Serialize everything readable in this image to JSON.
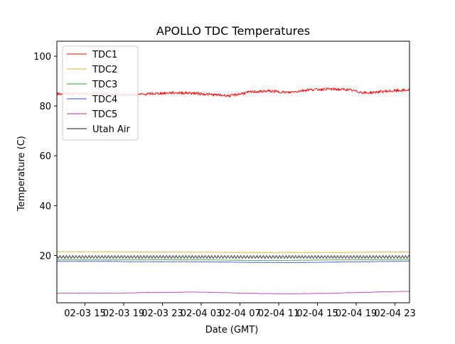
{
  "chart_data": {
    "type": "line",
    "title": "APOLLO TDC Temperatures",
    "xlabel": "Date (GMT)",
    "ylabel": "Temperature (C)",
    "x_unit": "hours since 2024-02-03 00:00 GMT",
    "xlim": [
      12.1,
      48.5
    ],
    "ylim": [
      1,
      106
    ],
    "grid": false,
    "legend": {
      "position": "top-left",
      "entries": [
        "TDC1",
        "TDC2",
        "TDC3",
        "TDC4",
        "TDC5",
        "Utah Air"
      ]
    },
    "xticks": [
      {
        "value": 15,
        "label": "02-03 15"
      },
      {
        "value": 19,
        "label": "02-03 19"
      },
      {
        "value": 23,
        "label": "02-03 23"
      },
      {
        "value": 27,
        "label": "02-04 03"
      },
      {
        "value": 31,
        "label": "02-04 07"
      },
      {
        "value": 35,
        "label": "02-04 11"
      },
      {
        "value": 39,
        "label": "02-04 15"
      },
      {
        "value": 43,
        "label": "02-04 19"
      },
      {
        "value": 47,
        "label": "02-04 23"
      }
    ],
    "yticks": [
      {
        "value": 20,
        "label": "20"
      },
      {
        "value": 40,
        "label": "40"
      },
      {
        "value": 60,
        "label": "60"
      },
      {
        "value": 80,
        "label": "80"
      },
      {
        "value": 100,
        "label": "100"
      }
    ],
    "x": [
      12.1,
      14,
      16,
      18,
      20,
      22,
      24,
      26,
      28,
      30,
      32,
      34,
      36,
      38,
      40,
      42,
      44,
      46,
      48.5
    ],
    "series": [
      {
        "name": "TDC1",
        "color": "#ff0000",
        "noise": 0.5,
        "values": [
          84.9,
          85.0,
          84.8,
          84.6,
          84.5,
          84.9,
          85.3,
          85.2,
          84.6,
          84.1,
          85.6,
          86.0,
          85.4,
          86.5,
          86.8,
          86.6,
          85.2,
          85.9,
          86.4
        ]
      },
      {
        "name": "TDC2",
        "color": "#d6b02a",
        "noise": 0.05,
        "values": [
          21.5,
          21.5,
          21.5,
          21.5,
          21.4,
          21.4,
          21.4,
          21.3,
          21.3,
          21.2,
          21.2,
          21.2,
          21.2,
          21.2,
          21.2,
          21.2,
          21.3,
          21.4,
          21.4
        ]
      },
      {
        "name": "TDC3",
        "color": "#2ca02c",
        "noise": 0.05,
        "values": [
          18.2,
          18.2,
          18.2,
          18.2,
          18.3,
          18.3,
          18.3,
          18.3,
          18.2,
          18.1,
          18.0,
          18.0,
          18.0,
          18.1,
          18.2,
          18.2,
          18.3,
          18.3,
          18.4
        ]
      },
      {
        "name": "TDC4",
        "color": "#3344cc",
        "noise": 0.05,
        "values": [
          17.6,
          17.6,
          17.6,
          17.6,
          17.5,
          17.5,
          17.5,
          17.5,
          17.4,
          17.3,
          17.2,
          17.2,
          17.1,
          17.2,
          17.3,
          17.4,
          17.5,
          17.6,
          17.7
        ]
      },
      {
        "name": "TDC5",
        "color": "#b030b0",
        "noise": 0.08,
        "values": [
          4.9,
          4.9,
          4.9,
          4.9,
          5.0,
          5.1,
          5.2,
          5.3,
          5.2,
          5.0,
          4.8,
          4.7,
          4.6,
          4.7,
          4.8,
          5.0,
          5.2,
          5.4,
          5.6
        ]
      },
      {
        "name": "Utah Air",
        "color": "#111111",
        "oscillation": 0.55,
        "values": [
          19.4,
          19.4,
          19.4,
          19.4,
          19.4,
          19.4,
          19.4,
          19.4,
          19.4,
          19.4,
          19.4,
          19.4,
          19.4,
          19.4,
          19.4,
          19.4,
          19.4,
          19.4,
          19.4
        ]
      }
    ]
  }
}
